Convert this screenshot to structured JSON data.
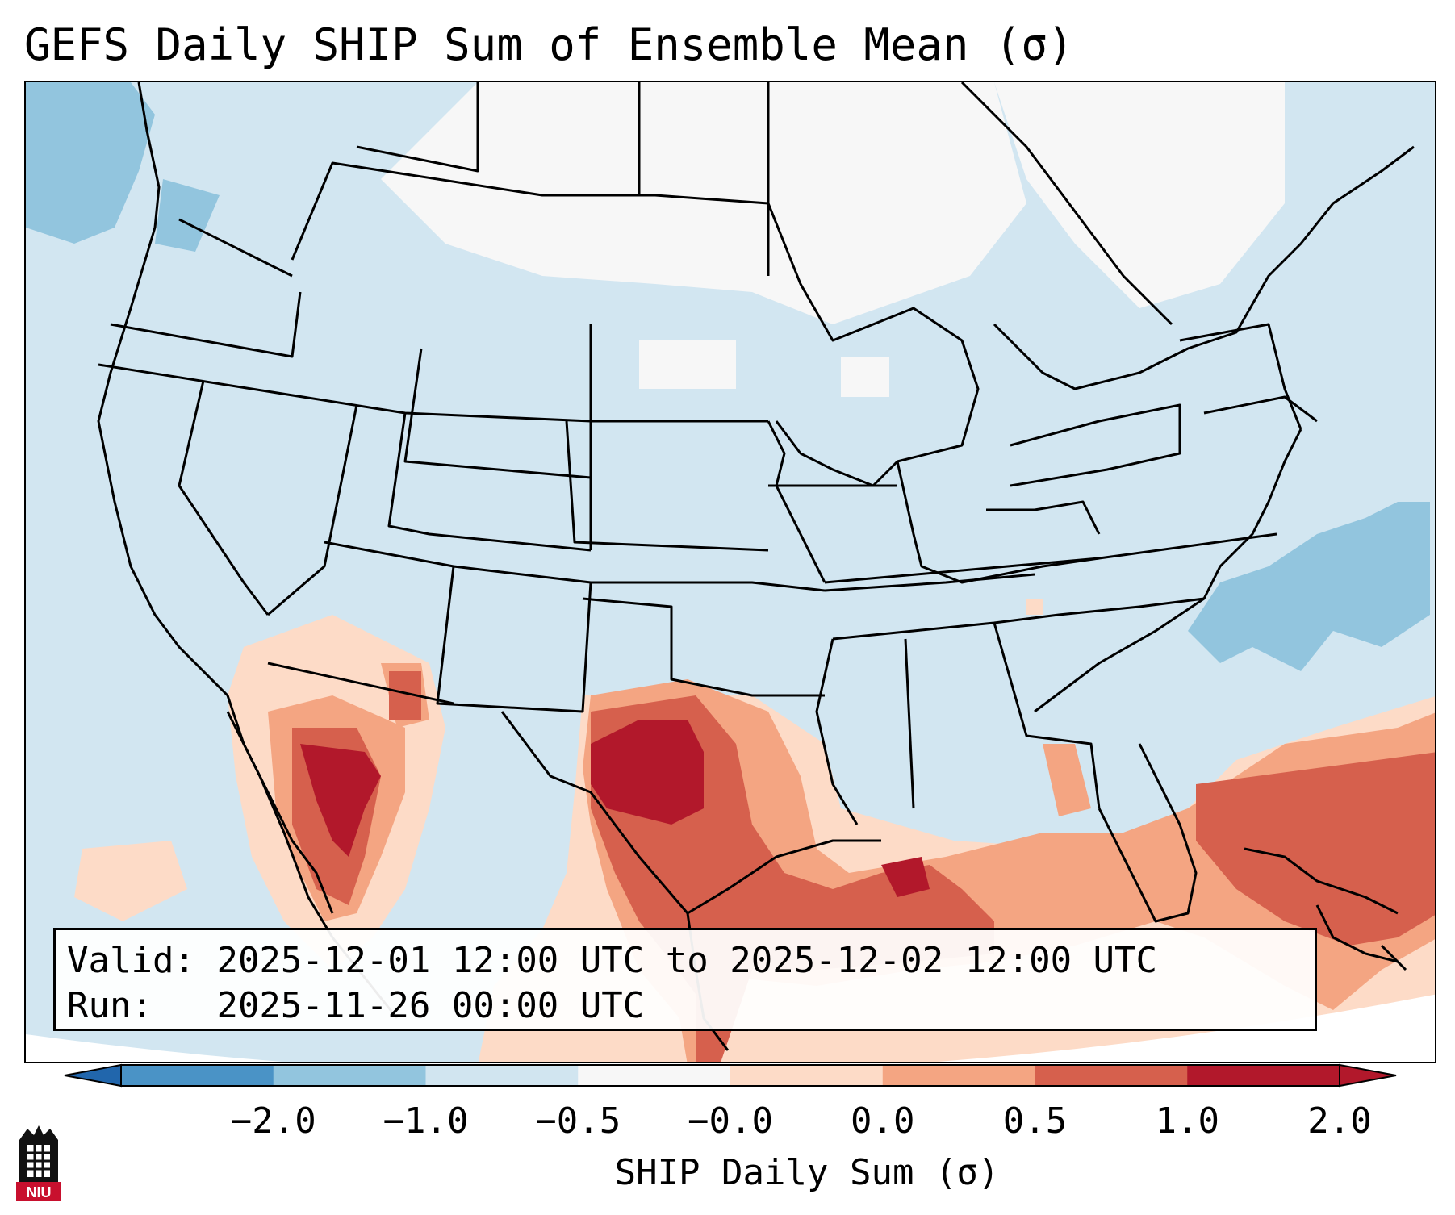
{
  "title": "GEFS Daily SHIP Sum of Ensemble Mean (σ)",
  "info": {
    "valid_label": "Valid:",
    "valid_value": "2025-12-01 12:00 UTC to 2025-12-02 12:00 UTC",
    "run_label": "Run:",
    "run_value": "2025-11-26 00:00 UTC"
  },
  "colorbar": {
    "label": "SHIP Daily Sum (σ)",
    "ticks": [
      "−2.0",
      "−1.0",
      "−0.5",
      "−0.0",
      "0.0",
      "0.5",
      "1.0",
      "2.0"
    ],
    "colors": [
      "#4a93c6",
      "#92c5de",
      "#d1e5f0",
      "#f7f7f7",
      "#fddbc7",
      "#f4a582",
      "#d6604d",
      "#b2182b"
    ],
    "under_color": "#2166ac",
    "over_color": "#b2182b"
  },
  "logo": {
    "text": "NIU",
    "icon": "niu-logo-icon",
    "color": "#c8102e"
  }
}
